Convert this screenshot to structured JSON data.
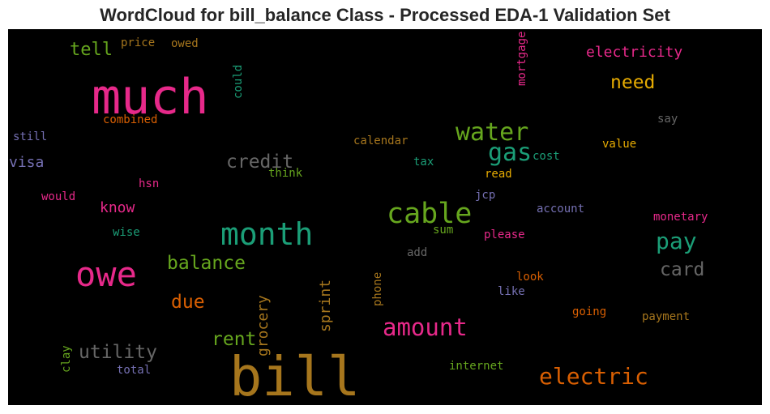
{
  "chart_data": {
    "type": "wordcloud",
    "title": "WordCloud for bill_balance Class - Processed EDA-1 Validation Set",
    "background": "#000000",
    "words": [
      {
        "text": "much",
        "color": "#e7298a"
      },
      {
        "text": "bill",
        "color": "#a6761d"
      },
      {
        "text": "owe",
        "color": "#e7298a"
      },
      {
        "text": "month",
        "color": "#1b9e77"
      },
      {
        "text": "cable",
        "color": "#66a61e"
      },
      {
        "text": "water",
        "color": "#66a61e"
      },
      {
        "text": "gas",
        "color": "#1b9e77"
      },
      {
        "text": "credit",
        "color": "#666666"
      },
      {
        "text": "amount",
        "color": "#e7298a"
      },
      {
        "text": "electric",
        "color": "#d95f02"
      },
      {
        "text": "pay",
        "color": "#1b9e77"
      },
      {
        "text": "card",
        "color": "#666666"
      },
      {
        "text": "balance",
        "color": "#66a61e"
      },
      {
        "text": "utility",
        "color": "#666666"
      },
      {
        "text": "rent",
        "color": "#66a61e"
      },
      {
        "text": "due",
        "color": "#d95f02"
      },
      {
        "text": "need",
        "color": "#e6ab02"
      },
      {
        "text": "tell",
        "color": "#66a61e"
      },
      {
        "text": "electricity",
        "color": "#e7298a"
      },
      {
        "text": "grocery",
        "color": "#a6761d"
      },
      {
        "text": "sprint",
        "color": "#a6761d"
      },
      {
        "text": "know",
        "color": "#e7298a"
      },
      {
        "text": "visa",
        "color": "#7570b3"
      },
      {
        "text": "still",
        "color": "#7570b3"
      },
      {
        "text": "combined",
        "color": "#d95f02"
      },
      {
        "text": "price",
        "color": "#a6761d"
      },
      {
        "text": "owed",
        "color": "#a6761d"
      },
      {
        "text": "could",
        "color": "#1b9e77"
      },
      {
        "text": "mortgage",
        "color": "#e7298a"
      },
      {
        "text": "say",
        "color": "#666666"
      },
      {
        "text": "calendar",
        "color": "#a6761d"
      },
      {
        "text": "tax",
        "color": "#1b9e77"
      },
      {
        "text": "cost",
        "color": "#1b9e77"
      },
      {
        "text": "value",
        "color": "#e6ab02"
      },
      {
        "text": "read",
        "color": "#e6ab02"
      },
      {
        "text": "think",
        "color": "#66a61e"
      },
      {
        "text": "hsn",
        "color": "#e7298a"
      },
      {
        "text": "would",
        "color": "#e7298a"
      },
      {
        "text": "jcp",
        "color": "#7570b3"
      },
      {
        "text": "account",
        "color": "#7570b3"
      },
      {
        "text": "monetary",
        "color": "#e7298a"
      },
      {
        "text": "wise",
        "color": "#1b9e77"
      },
      {
        "text": "sum",
        "color": "#66a61e"
      },
      {
        "text": "please",
        "color": "#e7298a"
      },
      {
        "text": "add",
        "color": "#666666"
      },
      {
        "text": "phone",
        "color": "#a6761d"
      },
      {
        "text": "look",
        "color": "#d95f02"
      },
      {
        "text": "like",
        "color": "#7570b3"
      },
      {
        "text": "going",
        "color": "#d95f02"
      },
      {
        "text": "payment",
        "color": "#a6761d"
      },
      {
        "text": "clay",
        "color": "#66a61e"
      },
      {
        "text": "total",
        "color": "#7570b3"
      },
      {
        "text": "internet",
        "color": "#66a61e"
      }
    ]
  }
}
